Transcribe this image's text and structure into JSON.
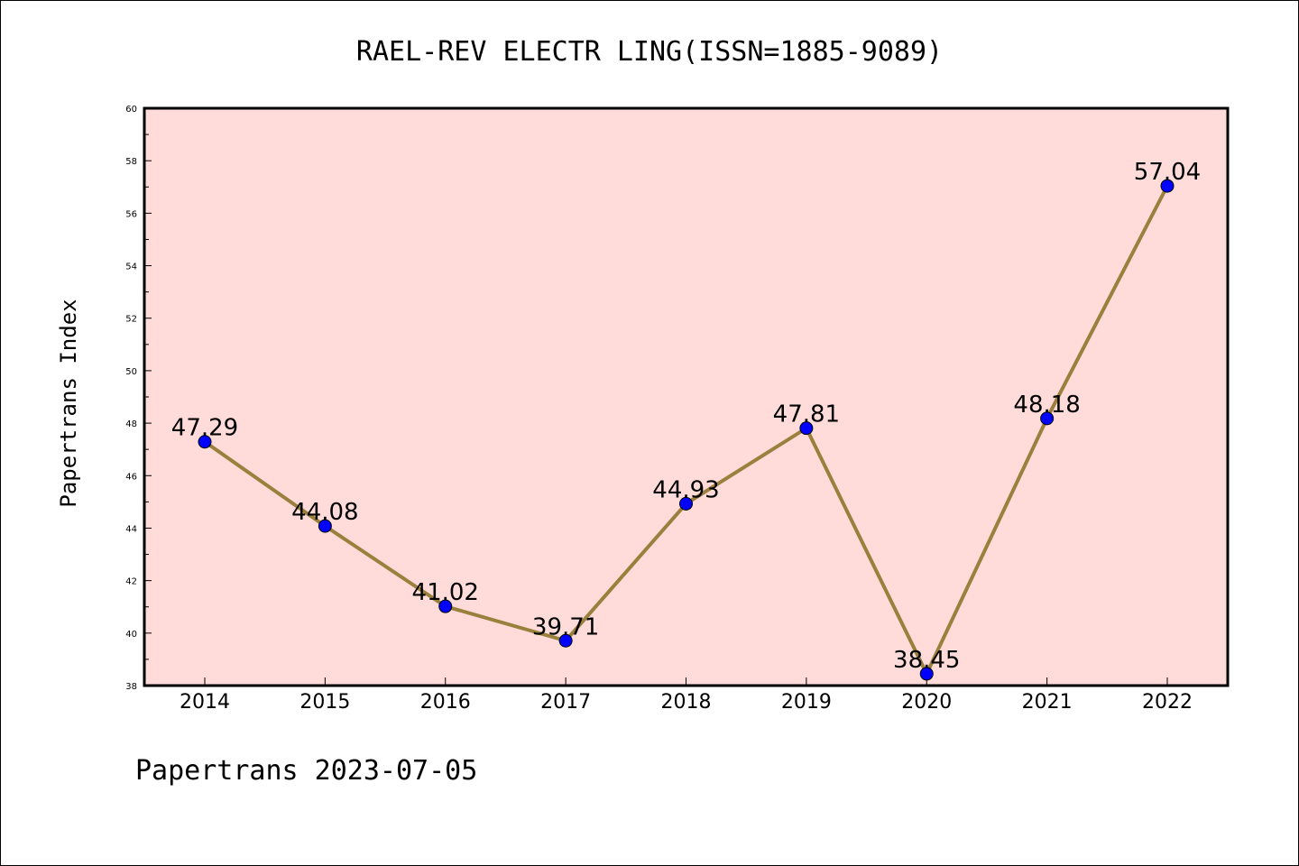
{
  "chart_data": {
    "type": "line",
    "title": "RAEL-REV ELECTR LING(ISSN=1885-9089)",
    "xlabel": "",
    "ylabel": "Papertrans Index",
    "categories": [
      "2014",
      "2015",
      "2016",
      "2017",
      "2018",
      "2019",
      "2020",
      "2021",
      "2022"
    ],
    "series": [
      {
        "values": [
          47.29,
          44.08,
          41.02,
          39.71,
          44.93,
          47.81,
          38.45,
          48.18,
          57.04
        ],
        "labels": [
          "47.29",
          "44.08",
          "41.02",
          "39.71",
          "44.93",
          "47.81",
          "38.45",
          "48.18",
          "57.04"
        ]
      }
    ],
    "ylim": [
      38,
      60
    ],
    "yticks": [
      "38",
      "40",
      "42",
      "44",
      "46",
      "48",
      "50",
      "52",
      "54",
      "56",
      "58",
      "60"
    ],
    "grid": false,
    "footer": "Papertrans 2023-07-05",
    "colors": {
      "plot_background": "#ffdcda",
      "line": "#9b7f3c",
      "marker": "#0000ff"
    }
  }
}
